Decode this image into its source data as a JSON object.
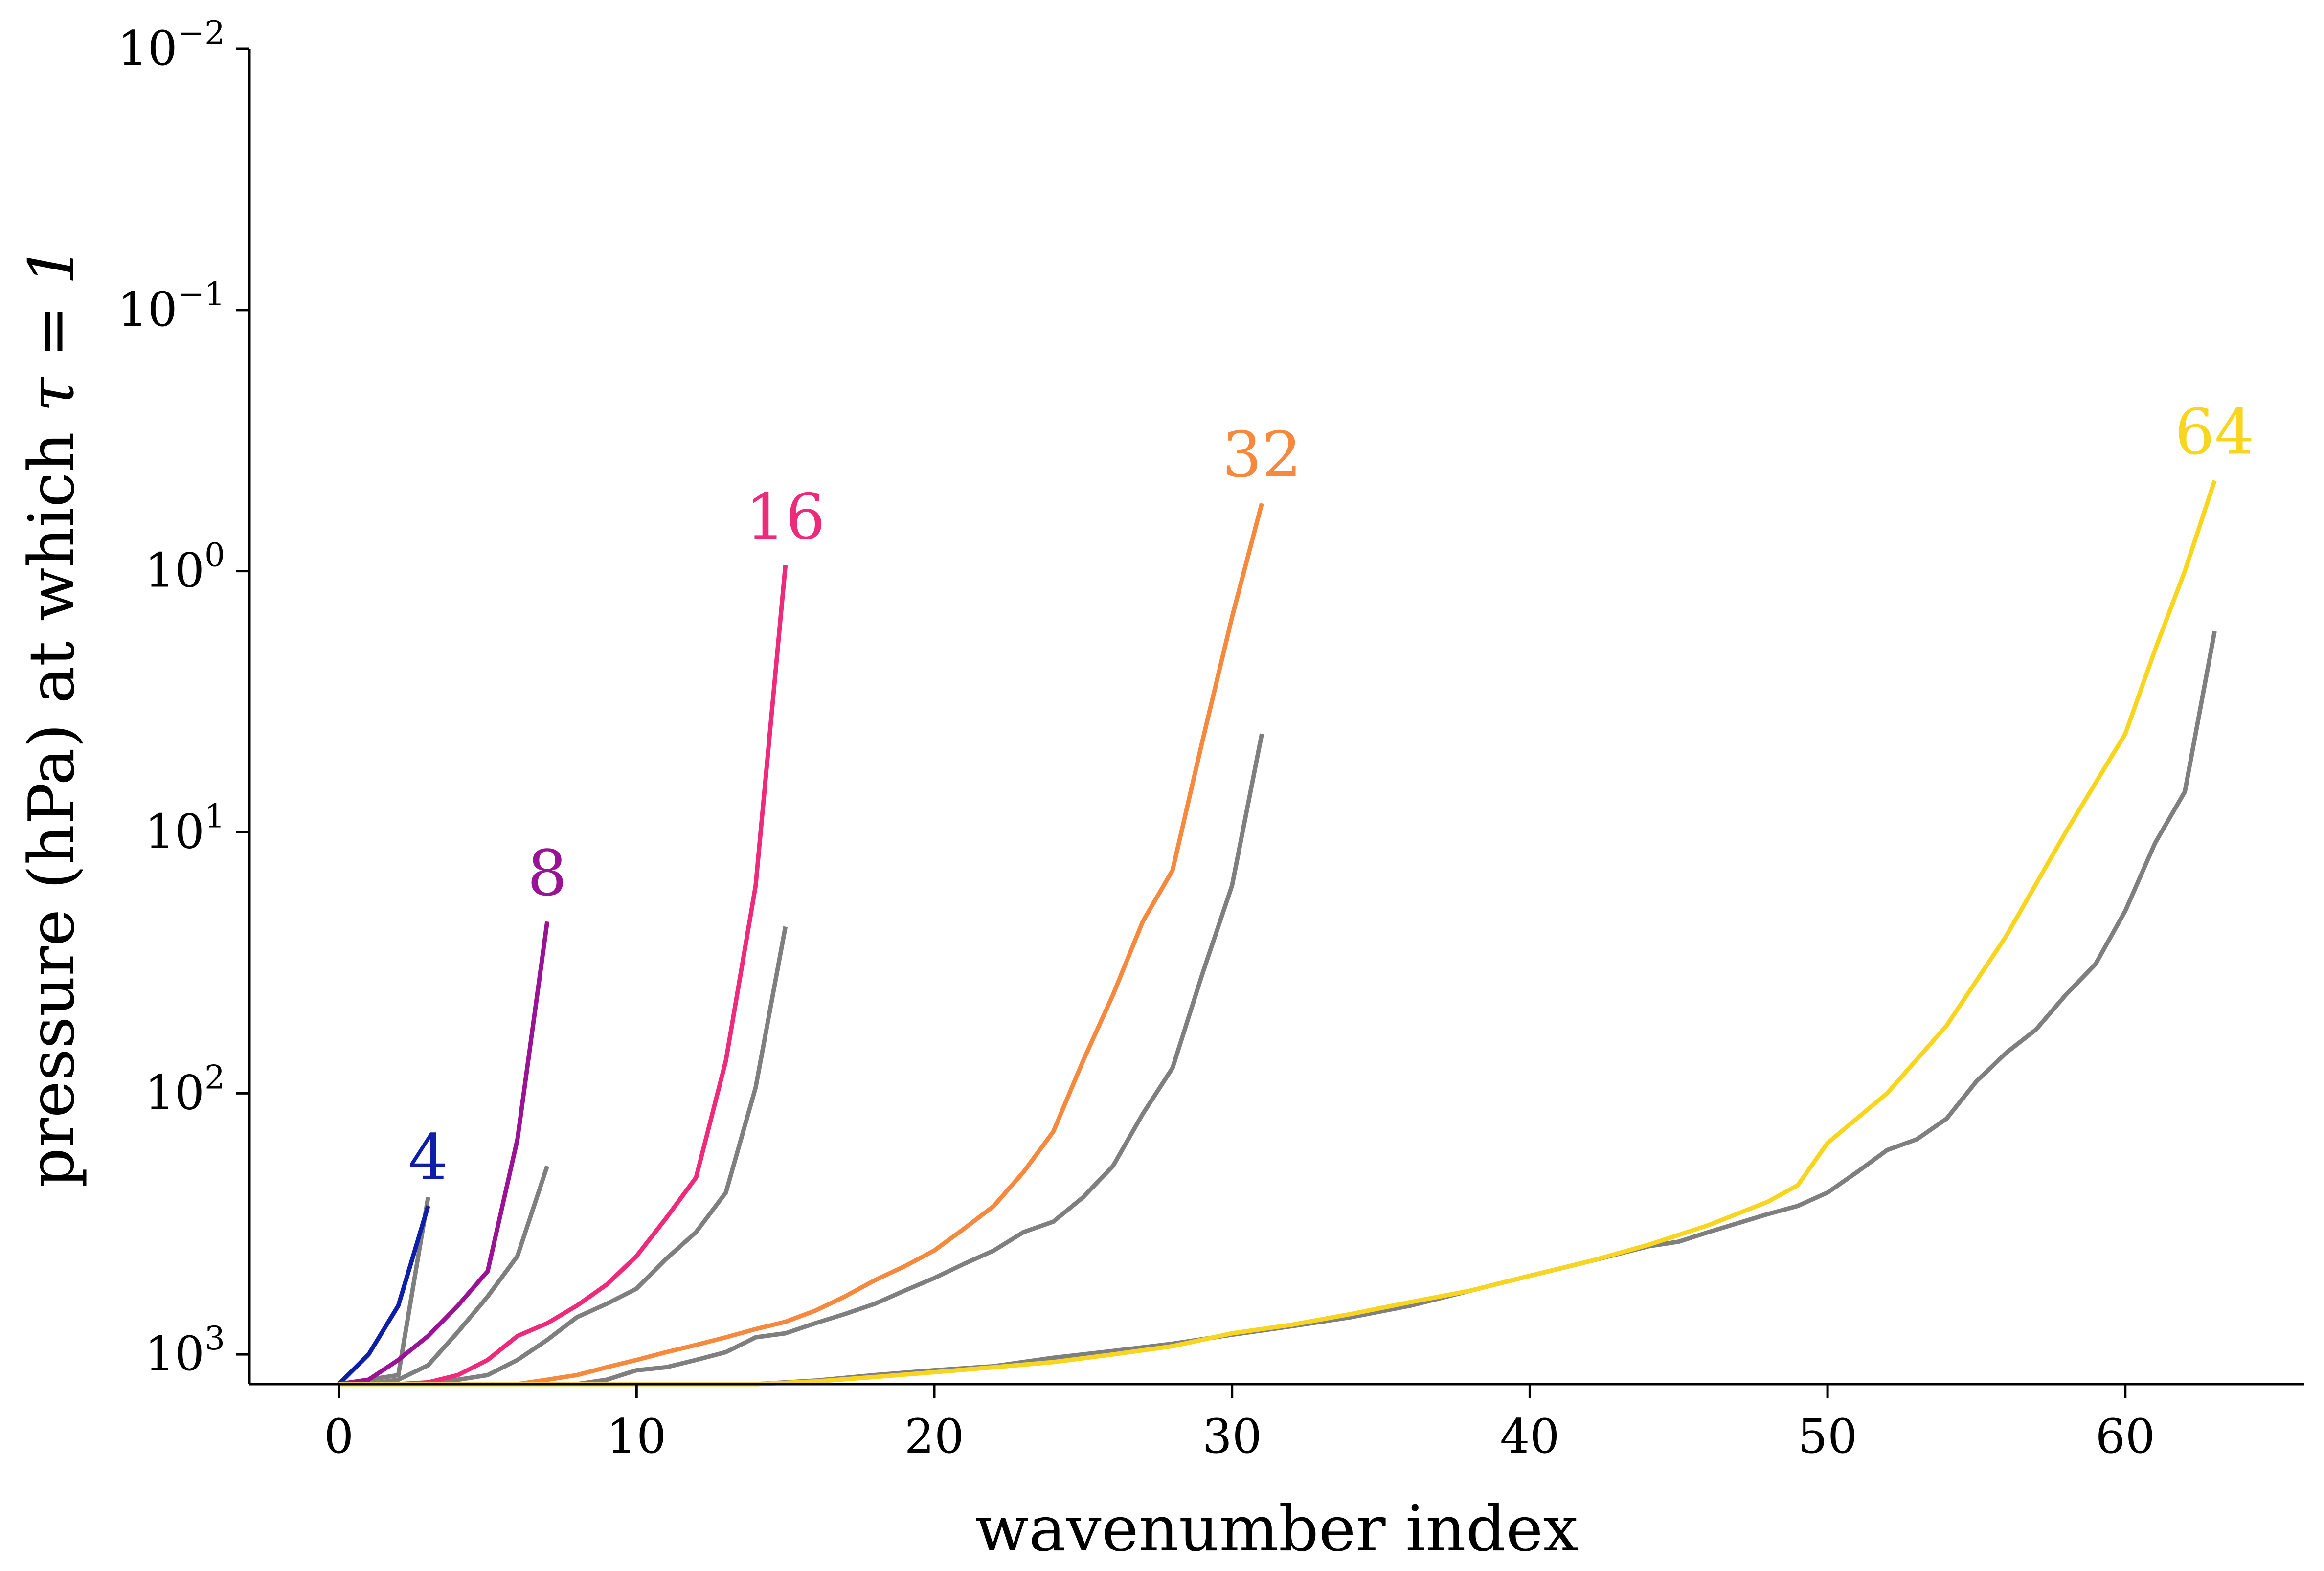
{
  "chart_data": {
    "type": "line",
    "xlabel": "wavenumber index",
    "ylabel_text": "pressure (hPa) at which ",
    "ylabel_symbol": "τ = 1",
    "x_range": [
      -3,
      66
    ],
    "y_scale": "log (inverted, pressure increases downward)",
    "y_range": [
      0.01,
      1300
    ],
    "grid": false,
    "x_ticks": [
      0,
      10,
      20,
      30,
      40,
      50,
      60
    ],
    "x_tick_labels": [
      "0",
      "10",
      "20",
      "30",
      "40",
      "50",
      "60"
    ],
    "y_ticks": [
      0.01,
      0.1,
      1,
      10,
      100,
      1000
    ],
    "y_tick_labels": [
      {
        "base": "10",
        "exp": "−2"
      },
      {
        "base": "10",
        "exp": "−1"
      },
      {
        "base": "10",
        "exp": "0"
      },
      {
        "base": "10",
        "exp": "1"
      },
      {
        "base": "10",
        "exp": "2"
      },
      {
        "base": "10",
        "exp": "3"
      }
    ],
    "series": [
      {
        "name": "4",
        "label": "4",
        "color": "#0d1ea8",
        "x": [
          0,
          1,
          2,
          3
        ],
        "y": [
          1300,
          1000,
          650,
          270
        ]
      },
      {
        "name": "",
        "color": "#7f7f7f",
        "x": [
          0,
          1,
          2,
          3
        ],
        "y": [
          1300,
          1250,
          1200,
          250
        ]
      },
      {
        "name": "8",
        "label": "8",
        "color": "#9a1394",
        "x": [
          0,
          1,
          2,
          3,
          4,
          5,
          6,
          7
        ],
        "y": [
          1300,
          1250,
          1050,
          850,
          650,
          480,
          150,
          22
        ]
      },
      {
        "name": "",
        "color": "#7f7f7f",
        "x": [
          0,
          1,
          2,
          3,
          4,
          5,
          6,
          7
        ],
        "y": [
          1300,
          1300,
          1250,
          1100,
          820,
          600,
          420,
          190
        ]
      },
      {
        "name": "16",
        "label": "16",
        "color": "#ee2a7b",
        "x": [
          0,
          1,
          2,
          3,
          4,
          5,
          6,
          7,
          8,
          9,
          10,
          11,
          12,
          13,
          14,
          15
        ],
        "y": [
          1300,
          1300,
          1300,
          1280,
          1200,
          1050,
          850,
          760,
          650,
          540,
          420,
          300,
          210,
          75,
          16,
          0.95
        ]
      },
      {
        "name": "",
        "color": "#7f7f7f",
        "x": [
          0,
          1,
          2,
          3,
          4,
          5,
          6,
          7,
          8,
          9,
          10,
          11,
          12,
          13,
          14,
          15
        ],
        "y": [
          1300,
          1300,
          1300,
          1300,
          1250,
          1200,
          1050,
          880,
          720,
          640,
          560,
          430,
          340,
          240,
          95,
          23
        ]
      },
      {
        "name": "32",
        "label": "32",
        "color": "#f7893e",
        "x": [
          0,
          2,
          4,
          5,
          6,
          7,
          8,
          9,
          10,
          11,
          12,
          13,
          14,
          15,
          16,
          17,
          18,
          19,
          20,
          21,
          22,
          23,
          24,
          25,
          26,
          27,
          28,
          29,
          30,
          31
        ],
        "y": [
          1300,
          1300,
          1300,
          1300,
          1300,
          1250,
          1200,
          1120,
          1050,
          980,
          920,
          860,
          800,
          750,
          680,
          600,
          520,
          460,
          400,
          330,
          270,
          200,
          140,
          75,
          42,
          22,
          14,
          4.5,
          1.5,
          0.55
        ]
      },
      {
        "name": "",
        "color": "#7f7f7f",
        "x": [
          0,
          2,
          4,
          6,
          7,
          8,
          9,
          10,
          11,
          12,
          13,
          14,
          15,
          16,
          17,
          18,
          19,
          20,
          21,
          22,
          23,
          24,
          25,
          26,
          27,
          28,
          29,
          30,
          31
        ],
        "y": [
          1300,
          1300,
          1300,
          1300,
          1300,
          1300,
          1250,
          1150,
          1120,
          1050,
          980,
          860,
          830,
          760,
          700,
          640,
          570,
          510,
          450,
          400,
          340,
          310,
          250,
          190,
          120,
          80,
          35,
          16,
          4.2
        ]
      },
      {
        "name": "64",
        "label": "64",
        "color": "#f8d51f",
        "x": [
          0,
          10,
          14,
          16,
          18,
          20,
          22,
          24,
          26,
          28,
          30,
          32,
          34,
          36,
          38,
          40,
          42,
          44,
          46,
          48,
          49,
          50,
          52,
          54,
          56,
          58,
          60,
          61,
          62,
          63
        ],
        "y": [
          1300,
          1300,
          1300,
          1270,
          1220,
          1170,
          1120,
          1070,
          1000,
          930,
          830,
          770,
          700,
          630,
          570,
          500,
          440,
          380,
          320,
          260,
          225,
          155,
          100,
          55,
          25,
          10,
          4.2,
          2,
          1,
          0.45
        ]
      },
      {
        "name": "",
        "color": "#7f7f7f",
        "x": [
          0,
          14,
          16,
          18,
          20,
          22,
          24,
          26,
          28,
          30,
          32,
          34,
          36,
          38,
          40,
          42,
          44,
          45,
          46,
          48,
          49,
          50,
          51,
          52,
          53,
          54,
          55,
          56,
          57,
          58,
          59,
          60,
          61,
          62,
          63
        ],
        "y": [
          1300,
          1300,
          1260,
          1200,
          1150,
          1110,
          1030,
          970,
          910,
          840,
          780,
          720,
          650,
          570,
          500,
          440,
          385,
          370,
          340,
          290,
          270,
          240,
          200,
          165,
          150,
          125,
          90,
          70,
          57,
          42,
          32,
          20,
          11,
          7,
          1.7
        ]
      }
    ]
  }
}
